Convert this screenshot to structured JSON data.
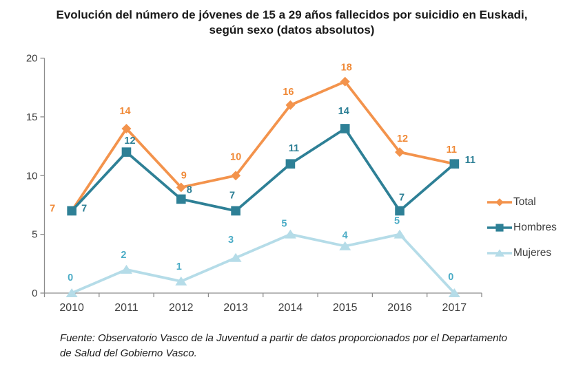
{
  "title": {
    "line1": "Evolución del número de jóvenes de 15 a 29 años fallecidos por suicidio en Euskadi,",
    "line2": "según sexo (datos absolutos)"
  },
  "chart_data": {
    "type": "line",
    "categories": [
      "2010",
      "2011",
      "2012",
      "2013",
      "2014",
      "2015",
      "2016",
      "2017"
    ],
    "series": [
      {
        "name": "Total",
        "values": [
          7,
          14,
          9,
          10,
          16,
          18,
          12,
          11
        ],
        "color": "#F3934C",
        "label_color": "#F08A38",
        "marker": "diamond"
      },
      {
        "name": "Hombres",
        "values": [
          7,
          12,
          8,
          7,
          11,
          14,
          7,
          11
        ],
        "color": "#2E8096",
        "label_color": "#2E8096",
        "marker": "square"
      },
      {
        "name": "Mujeres",
        "values": [
          0,
          2,
          1,
          3,
          5,
          4,
          5,
          0
        ],
        "color": "#B5DCE8",
        "label_color": "#4BACC6",
        "marker": "triangle"
      }
    ],
    "title": "Evolución del número de jóvenes de 15 a 29 años fallecidos por suicidio en Euskadi, según sexo (datos absolutos)",
    "xlabel": "",
    "ylabel": "",
    "ylim": [
      0,
      20
    ],
    "yticks": [
      0,
      5,
      10,
      15,
      20
    ],
    "grid": false,
    "legend_position": "right",
    "axis_color": "#8C8C8C",
    "tick_label_color": "#404040",
    "data_labels": true
  },
  "source": {
    "line1": "Fuente: Observatorio Vasco de la Juventud a partir de datos proporcionados por el Departamento",
    "line2": "de Salud del Gobierno Vasco."
  }
}
